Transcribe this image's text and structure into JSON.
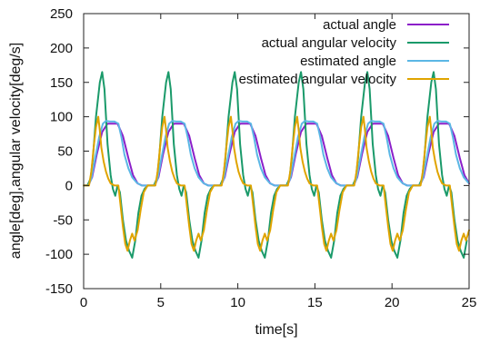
{
  "chart_data": {
    "type": "line",
    "title": "",
    "xlabel": "time[s]",
    "ylabel": "angle[deg],angular velocity[deg/s]",
    "xlim": [
      0,
      25
    ],
    "ylim": [
      -150,
      250
    ],
    "xticks": [
      "0",
      "5",
      "10",
      "15",
      "20",
      "25"
    ],
    "yticks": [
      "-150",
      "-100",
      "-50",
      "0",
      "50",
      "100",
      "150",
      "200",
      "250"
    ],
    "grid": false,
    "legend_position": "top-right",
    "period": 4.3,
    "series": [
      {
        "name": "actual angle",
        "color": "#8b1fc9",
        "x": [
          0.0,
          0.3,
          0.55,
          0.85,
          1.2,
          1.55,
          1.8,
          2.2,
          2.55,
          2.9,
          3.2,
          3.5,
          3.8,
          4.1
        ],
        "y": [
          0,
          0,
          12,
          45,
          78,
          90,
          90,
          90,
          72,
          40,
          15,
          3,
          0,
          0
        ]
      },
      {
        "name": "actual angular velocity",
        "color": "#1a9a6a",
        "x": [
          0.0,
          0.25,
          0.45,
          0.6,
          0.8,
          1.05,
          1.2,
          1.35,
          1.55,
          1.75,
          1.9,
          2.05,
          2.2,
          2.35,
          2.55,
          2.75,
          2.95,
          3.15,
          3.35,
          3.55,
          3.75,
          3.95,
          4.15
        ],
        "y": [
          0,
          0,
          10,
          40,
          100,
          150,
          165,
          140,
          60,
          15,
          -5,
          -15,
          0,
          -10,
          -50,
          -80,
          -95,
          -105,
          -80,
          -40,
          -15,
          -5,
          0
        ]
      },
      {
        "name": "estimated angle",
        "color": "#5bb7e5",
        "x": [
          0.0,
          0.3,
          0.5,
          0.75,
          1.0,
          1.25,
          1.45,
          1.7,
          2.0,
          2.25,
          2.45,
          2.65,
          2.9,
          3.15,
          3.45,
          3.75,
          4.1
        ],
        "y": [
          0,
          0,
          10,
          40,
          70,
          90,
          94,
          93,
          93,
          90,
          70,
          45,
          25,
          12,
          4,
          0,
          0
        ]
      },
      {
        "name": "estimated angular velocity",
        "color": "#e0a400",
        "x": [
          0.0,
          0.35,
          0.5,
          0.65,
          0.8,
          0.95,
          1.05,
          1.15,
          1.3,
          1.45,
          1.6,
          1.75,
          2.0,
          2.25,
          2.4,
          2.55,
          2.7,
          2.85,
          3.0,
          3.15,
          3.3,
          3.5,
          3.7,
          3.9,
          4.15
        ],
        "y": [
          0,
          0,
          20,
          55,
          85,
          100,
          80,
          55,
          35,
          20,
          10,
          3,
          0,
          0,
          -30,
          -60,
          -85,
          -95,
          -80,
          -70,
          -80,
          -65,
          -35,
          -10,
          0
        ]
      }
    ]
  }
}
